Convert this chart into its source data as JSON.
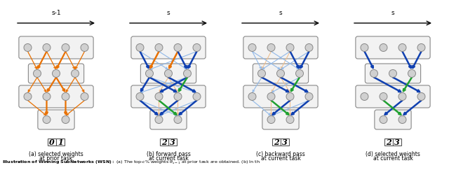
{
  "fig_width": 6.4,
  "fig_height": 2.43,
  "dpi": 100,
  "bg_color": "#ffffff",
  "panels": [
    {
      "id": "a",
      "label": "s-1",
      "cap1": "(a) selected weights",
      "cap2": "at prior task",
      "cls": [
        "0",
        "1"
      ]
    },
    {
      "id": "b",
      "label": "s",
      "cap1": "(b) forward pass",
      "cap2": "at current task",
      "cls": [
        "2",
        "3"
      ]
    },
    {
      "id": "c",
      "label": "s",
      "cap1": "(c) backward pass",
      "cap2": "at current task",
      "cls": [
        "2",
        "3"
      ]
    },
    {
      "id": "d",
      "label": "s",
      "cap1": "(d) selected weights",
      "cap2": "at current task",
      "cls": [
        "2",
        "3"
      ]
    }
  ],
  "layer_sizes": [
    4,
    3,
    4,
    2
  ],
  "orange": "#E87000",
  "blue": "#1040B0",
  "green": "#20A030",
  "lt_orange": "#F0C090",
  "lt_blue": "#90B8E8",
  "node_fill": "#D0D0D0",
  "node_edge": "#888888",
  "box_fill": "#F2F2F2",
  "box_edge": "#888888"
}
